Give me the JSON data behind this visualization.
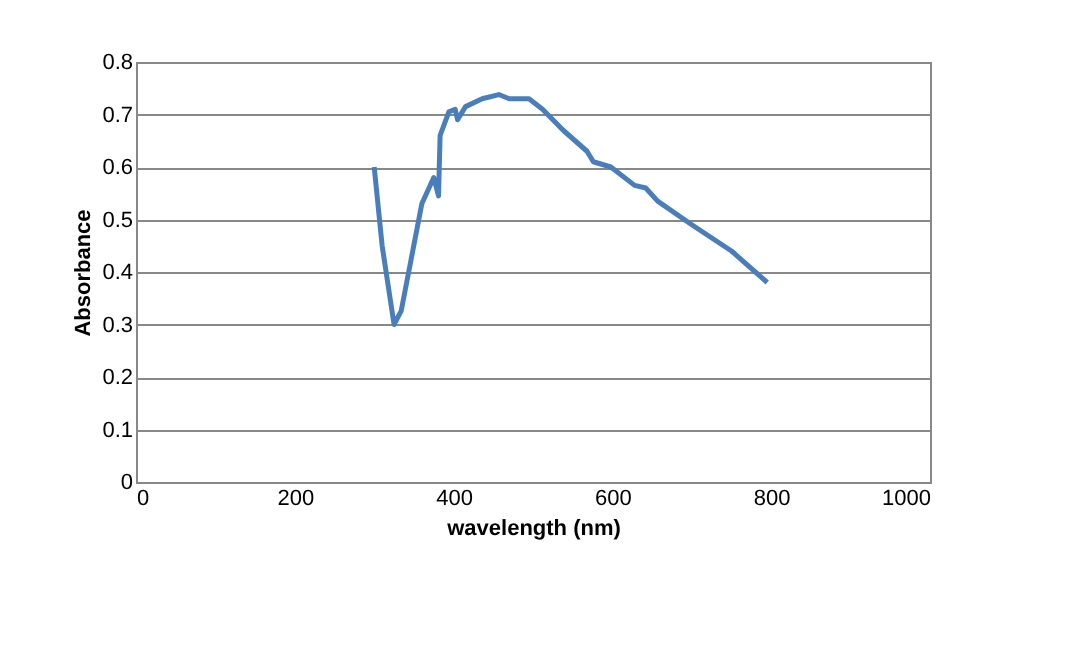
{
  "chart_data": {
    "type": "line",
    "xlabel": "wavelength (nm)",
    "ylabel": "Absorbance",
    "x": [
      300,
      310,
      325,
      334,
      360,
      375,
      381,
      383,
      394,
      402,
      405,
      415,
      436,
      457,
      470,
      495,
      512,
      538,
      568,
      576,
      598,
      628,
      642,
      657,
      700,
      750,
      795
    ],
    "series": [
      {
        "color": "#4a7ebb",
        "values": [
          0.6,
          0.45,
          0.3,
          0.326,
          0.53,
          0.58,
          0.545,
          0.66,
          0.705,
          0.71,
          0.69,
          0.715,
          0.73,
          0.738,
          0.73,
          0.73,
          0.71,
          0.67,
          0.63,
          0.61,
          0.6,
          0.565,
          0.56,
          0.535,
          0.49,
          0.44,
          0.38
        ]
      }
    ],
    "xlim": [
      0,
      1000
    ],
    "xticks": [
      0,
      200,
      400,
      600,
      800,
      1000
    ],
    "ylim": [
      0,
      0.8
    ],
    "yticks": [
      0,
      0.1,
      0.2,
      0.3,
      0.4,
      0.5,
      0.6,
      0.7,
      0.8
    ],
    "grid": "y",
    "marker": "none",
    "line_style": "solid"
  }
}
